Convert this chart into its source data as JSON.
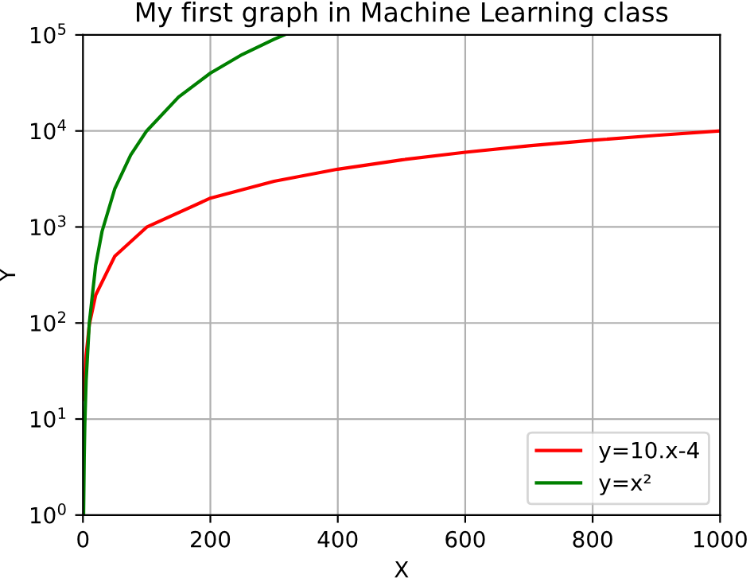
{
  "chart_data": {
    "type": "line",
    "title": "My first graph in Machine Learning class",
    "xlabel": "X",
    "ylabel": "Y",
    "log": "y",
    "grid": true,
    "legend": "bottom right",
    "line_style": "solid",
    "marker": "none",
    "xlim": [
      0,
      1000
    ],
    "xticks": [
      0,
      200,
      400,
      600,
      800,
      1000
    ],
    "ylim": [
      1,
      100000
    ],
    "yticks": [
      {
        "value": 1,
        "label": "10$^{0}$"
      },
      {
        "value": 10,
        "label": "10$^{1}$"
      },
      {
        "value": 100,
        "label": "10$^{2}$"
      },
      {
        "value": 1000,
        "label": "10$^{3}$"
      },
      {
        "value": 10000,
        "label": "10$^{4}$"
      },
      {
        "value": 100000,
        "label": "10$^{5}$"
      }
    ],
    "series": [
      {
        "name": "y=10.x-4",
        "color": "#ff0000",
        "x": [
          2,
          3,
          5,
          10,
          20,
          50,
          100,
          200,
          300,
          400,
          500,
          600,
          700,
          800,
          900,
          1000
        ],
        "values": [
          16,
          26,
          46,
          96,
          196,
          496,
          996,
          1996,
          2996,
          3996,
          4996,
          5996,
          6996,
          7996,
          8996,
          9996
        ]
      },
      {
        "name": "y=x²",
        "color": "#008000",
        "x": [
          1,
          2,
          3,
          5,
          10,
          20,
          30,
          50,
          75,
          100,
          150,
          200,
          250,
          300,
          316
        ],
        "values": [
          1,
          4,
          9,
          25,
          100,
          400,
          900,
          2500,
          5625,
          10000,
          22500,
          40000,
          62500,
          90000,
          99856
        ]
      }
    ]
  }
}
